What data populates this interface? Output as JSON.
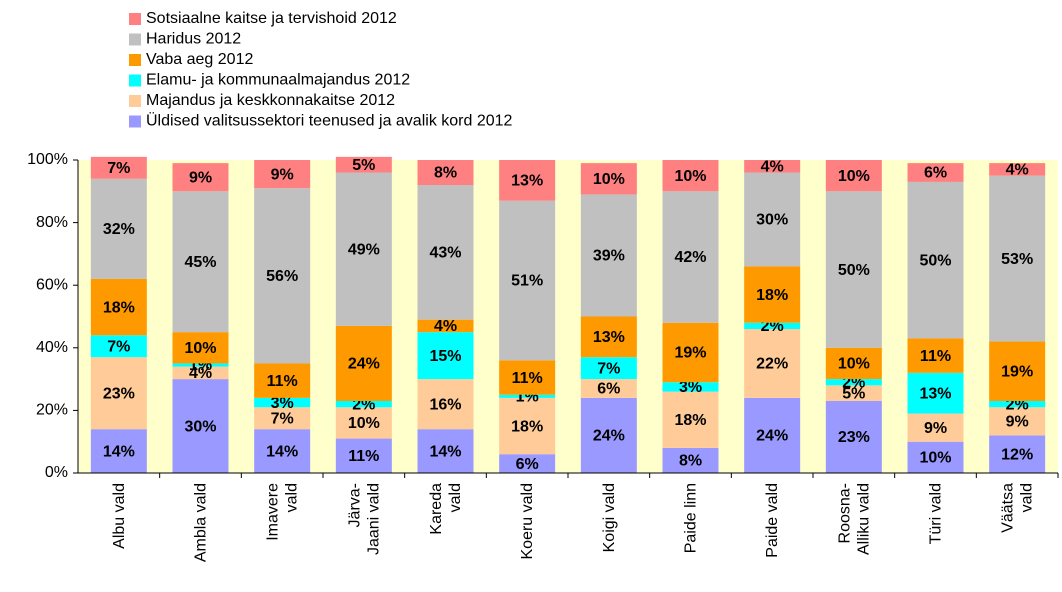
{
  "chart_data": {
    "type": "stacked_bar",
    "categories": [
      "Albu vald",
      "Ambla vald",
      "Imavere\nvald",
      "Järva-\nJaani vald",
      "Kareda\nvald",
      "Koeru vald",
      "Koigi vald",
      "Paide linn",
      "Paide vald",
      "Roosna-\nAlliku vald",
      "Türi vald",
      "Väätsa\nvald"
    ],
    "series": [
      {
        "name": "Üldised valitsussektori teenused ja avalik kord 2012",
        "color": "#9999ff",
        "values": [
          14,
          30,
          14,
          11,
          14,
          6,
          24,
          8,
          24,
          23,
          10,
          12
        ],
        "value_labels": [
          "14%",
          "30%",
          "14%",
          "11%",
          "14%",
          "6%",
          "24%",
          "8%",
          "24%",
          "23%",
          "10%",
          "12%"
        ]
      },
      {
        "name": "Majandus ja keskkonnakaitse 2012",
        "color": "#ffcc99",
        "values": [
          23,
          4,
          7,
          10,
          16,
          18,
          6,
          18,
          22,
          5,
          9,
          9
        ],
        "value_labels": [
          "23%",
          "4%",
          "7%",
          "10%",
          "16%",
          "18%",
          "6%",
          "18%",
          "22%",
          "5%",
          "9%",
          "9%"
        ]
      },
      {
        "name": "Elamu- ja kommunaalmajandus 2012",
        "color": "#00ffff",
        "values": [
          7,
          1,
          3,
          2,
          15,
          1,
          7,
          3,
          2,
          2,
          13,
          2
        ],
        "value_labels": [
          "7%",
          "1%",
          "3%",
          "2%",
          "15%",
          "1%",
          "7%",
          "3%",
          "2%",
          "2%",
          "13%",
          "2%"
        ]
      },
      {
        "name": "Vaba aeg 2012",
        "color": "#ff9900",
        "values": [
          18,
          10,
          11,
          24,
          4,
          11,
          13,
          19,
          18,
          10,
          11,
          19
        ],
        "value_labels": [
          "18%",
          "10%",
          "11%",
          "24%",
          "4%",
          "11%",
          "13%",
          "19%",
          "18%",
          "10%",
          "11%",
          "19%"
        ]
      },
      {
        "name": "Haridus 2012",
        "color": "#c0c0c0",
        "values": [
          32,
          45,
          56,
          49,
          43,
          51,
          39,
          42,
          30,
          50,
          50,
          53
        ],
        "value_labels": [
          "32%",
          "45%",
          "56%",
          "49%",
          "43%",
          "51%",
          "39%",
          "42%",
          "30%",
          "50%",
          "50%",
          "53%"
        ]
      },
      {
        "name": "Sotsiaalne kaitse ja tervishoid 2012",
        "color": "#ff8080",
        "values": [
          7,
          9,
          9,
          5,
          8,
          13,
          10,
          10,
          4,
          10,
          6,
          4
        ],
        "value_labels": [
          "7%",
          "9%",
          "9%",
          "5%",
          "8%",
          "13%",
          "10%",
          "10%",
          "4%",
          "10%",
          "6%",
          "4%"
        ]
      }
    ],
    "ylim": [
      0,
      100
    ],
    "yticks": [
      {
        "value": 0,
        "label": "0%"
      },
      {
        "value": 20,
        "label": "20%"
      },
      {
        "value": 40,
        "label": "40%"
      },
      {
        "value": 60,
        "label": "60%"
      },
      {
        "value": 80,
        "label": "80%"
      },
      {
        "value": 100,
        "label": "100%"
      }
    ],
    "plot_background": "#ffffcc"
  }
}
